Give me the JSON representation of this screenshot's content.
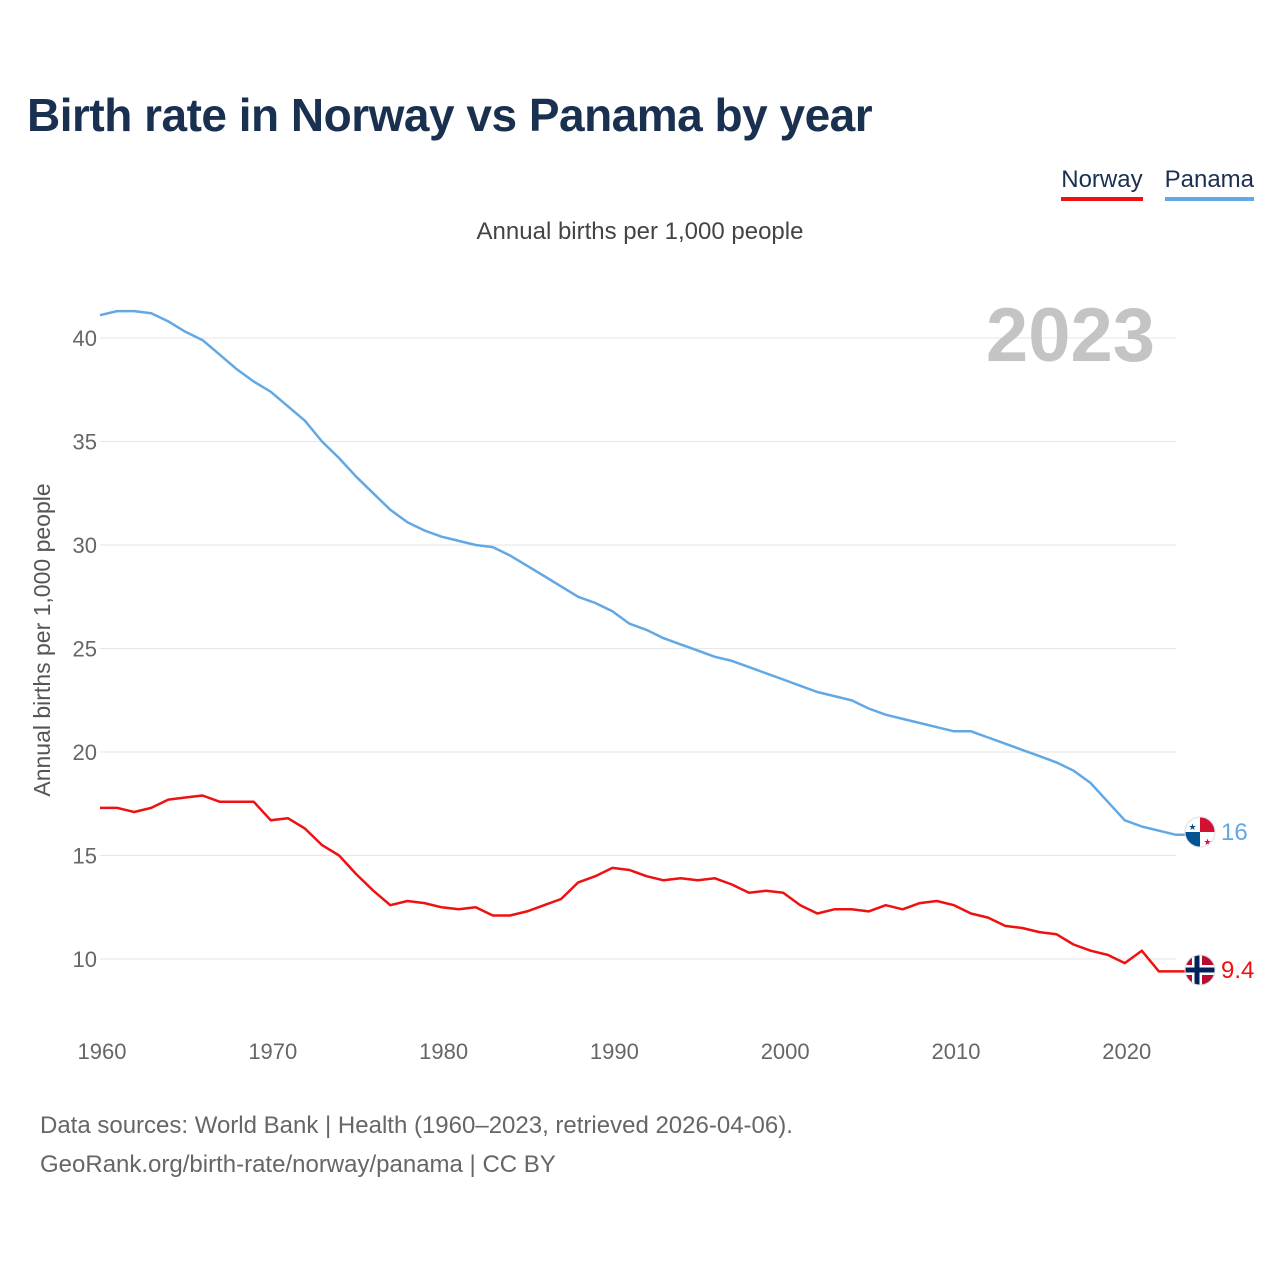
{
  "chart_data": {
    "type": "line",
    "title": "Birth rate in Norway vs Panama by year",
    "subtitle": "Annual births per 1,000 people",
    "ylabel": "Annual births per 1,000 people",
    "xlabel": "",
    "xlim": [
      1960,
      2023
    ],
    "ylim": [
      7,
      43
    ],
    "x_ticks": [
      1960,
      1970,
      1980,
      1990,
      2000,
      2010,
      2020
    ],
    "y_ticks": [
      10,
      15,
      20,
      25,
      30,
      35,
      40
    ],
    "year_label": "2023",
    "x": [
      1960,
      1961,
      1962,
      1963,
      1964,
      1965,
      1966,
      1967,
      1968,
      1969,
      1970,
      1971,
      1972,
      1973,
      1974,
      1975,
      1976,
      1977,
      1978,
      1979,
      1980,
      1981,
      1982,
      1983,
      1984,
      1985,
      1986,
      1987,
      1988,
      1989,
      1990,
      1991,
      1992,
      1993,
      1994,
      1995,
      1996,
      1997,
      1998,
      1999,
      2000,
      2001,
      2002,
      2003,
      2004,
      2005,
      2006,
      2007,
      2008,
      2009,
      2010,
      2011,
      2012,
      2013,
      2014,
      2015,
      2016,
      2017,
      2018,
      2019,
      2020,
      2021,
      2022,
      2023
    ],
    "series": [
      {
        "name": "Norway",
        "color": "#ee1111",
        "end_label": "9.4",
        "flag": "norway-flag",
        "values": [
          17.3,
          17.3,
          17.1,
          17.3,
          17.7,
          17.8,
          17.9,
          17.6,
          17.6,
          17.6,
          16.7,
          16.8,
          16.3,
          15.5,
          15.0,
          14.1,
          13.3,
          12.6,
          12.8,
          12.7,
          12.5,
          12.4,
          12.5,
          12.1,
          12.1,
          12.3,
          12.6,
          12.9,
          13.7,
          14.0,
          14.4,
          14.3,
          14.0,
          13.8,
          13.9,
          13.8,
          13.9,
          13.6,
          13.2,
          13.3,
          13.2,
          12.6,
          12.2,
          12.4,
          12.4,
          12.3,
          12.6,
          12.4,
          12.7,
          12.8,
          12.6,
          12.2,
          12.0,
          11.6,
          11.5,
          11.3,
          11.2,
          10.7,
          10.4,
          10.2,
          9.8,
          10.4,
          9.4,
          9.4
        ]
      },
      {
        "name": "Panama",
        "color": "#62a8e5",
        "end_label": "16",
        "flag": "panama-flag",
        "values": [
          41.1,
          41.3,
          41.3,
          41.2,
          40.8,
          40.3,
          39.9,
          39.2,
          38.5,
          37.9,
          37.4,
          36.7,
          36.0,
          35.0,
          34.2,
          33.3,
          32.5,
          31.7,
          31.1,
          30.7,
          30.4,
          30.2,
          30.0,
          29.9,
          29.5,
          29.0,
          28.5,
          28.0,
          27.5,
          27.2,
          26.8,
          26.2,
          25.9,
          25.5,
          25.2,
          24.9,
          24.6,
          24.4,
          24.1,
          23.8,
          23.5,
          23.2,
          22.9,
          22.7,
          22.5,
          22.1,
          21.8,
          21.6,
          21.4,
          21.2,
          21.0,
          21.0,
          20.7,
          20.4,
          20.1,
          19.8,
          19.5,
          19.1,
          18.5,
          17.6,
          16.7,
          16.4,
          16.2,
          16.0
        ]
      }
    ]
  },
  "legend": {
    "norway_label": "Norway",
    "panama_label": "Panama",
    "norway_color": "#ee1111",
    "panama_color": "#62a8e5"
  },
  "footer": {
    "line1": "Data sources: World Bank | Health (1960–2023, retrieved 2026-04-06).",
    "line2": "GeoRank.org/birth-rate/norway/panama | CC BY"
  }
}
